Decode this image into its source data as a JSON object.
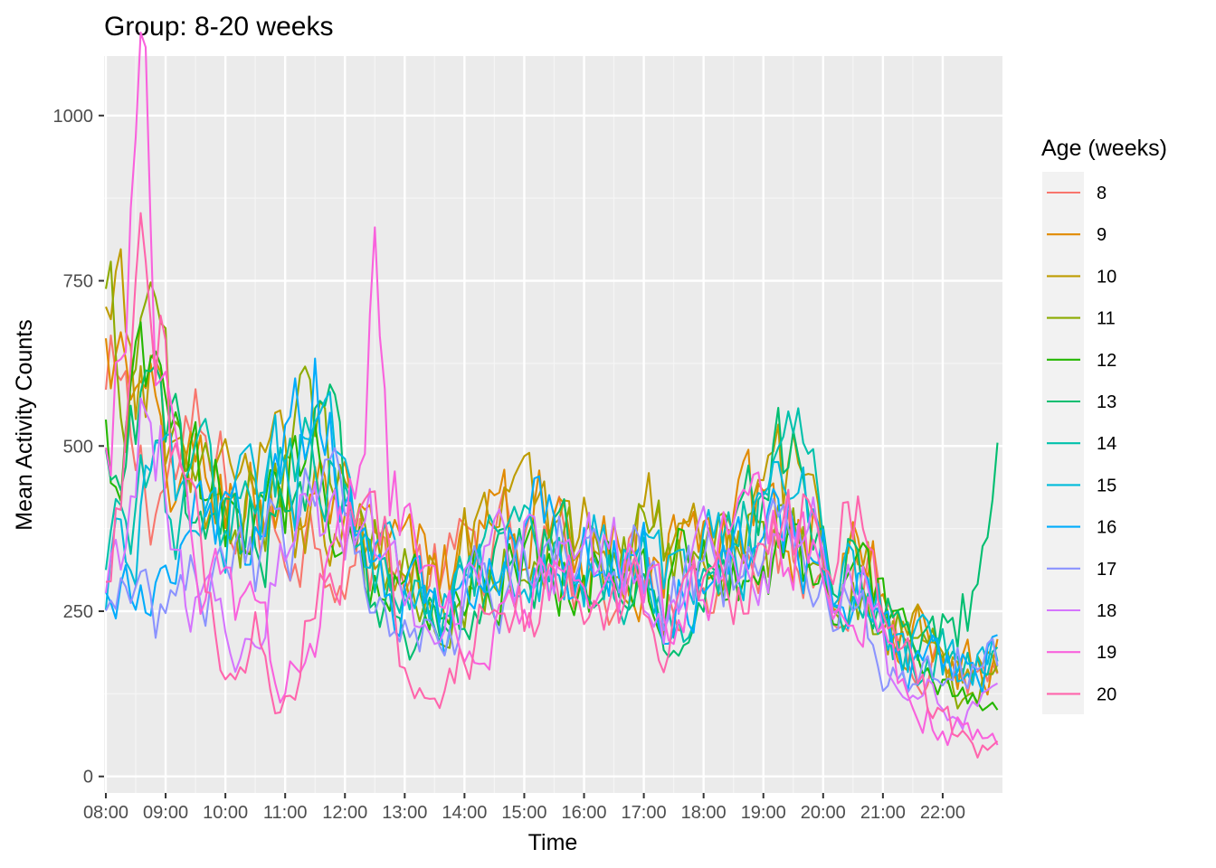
{
  "chart_data": {
    "type": "line",
    "title": "Group: 8-20 weeks",
    "xlabel": "Time",
    "ylabel": "Mean Activity Counts",
    "x_range_hours": [
      8.0,
      22.97
    ],
    "xlim_hours": [
      7.97,
      23.0
    ],
    "ylim": [
      -25,
      1090
    ],
    "x_tick_values_hours": [
      8,
      9,
      10,
      11,
      12,
      13,
      14,
      15,
      16,
      17,
      18,
      19,
      20,
      21,
      22
    ],
    "x_tick_labels": [
      "08:00",
      "09:00",
      "10:00",
      "11:00",
      "12:00",
      "13:00",
      "14:00",
      "15:00",
      "16:00",
      "17:00",
      "18:00",
      "19:00",
      "20:00",
      "21:00",
      "22:00"
    ],
    "y_ticks": [
      0,
      250,
      500,
      750,
      1000
    ],
    "y_tick_labels": [
      "0",
      "250",
      "500",
      "750",
      "1000"
    ],
    "grid": true,
    "legend_position": "right",
    "legend_title": "Age (weeks)",
    "sample_interval_minutes": 5,
    "series": [
      {
        "name": "8",
        "color": "#F8766D",
        "anchors": [
          [
            8.0,
            560
          ],
          [
            8.75,
            440
          ],
          [
            9.5,
            480
          ],
          [
            10.5,
            360
          ],
          [
            11.5,
            380
          ],
          [
            12.5,
            330
          ],
          [
            13.5,
            300
          ],
          [
            14.5,
            340
          ],
          [
            15.5,
            330
          ],
          [
            16.5,
            320
          ],
          [
            17.5,
            300
          ],
          [
            18.5,
            330
          ],
          [
            19.5,
            350
          ],
          [
            20.5,
            300
          ],
          [
            21.5,
            210
          ],
          [
            22.5,
            150
          ],
          [
            22.97,
            170
          ]
        ]
      },
      {
        "name": "9",
        "color": "#E18A00",
        "anchors": [
          [
            8.0,
            620
          ],
          [
            8.75,
            490
          ],
          [
            9.5,
            440
          ],
          [
            10.5,
            420
          ],
          [
            11.5,
            420
          ],
          [
            12.5,
            320
          ],
          [
            13.5,
            320
          ],
          [
            14.5,
            370
          ],
          [
            15.5,
            380
          ],
          [
            16.5,
            360
          ],
          [
            17.5,
            340
          ],
          [
            18.5,
            370
          ],
          [
            19.5,
            380
          ],
          [
            20.5,
            330
          ],
          [
            21.5,
            220
          ],
          [
            22.5,
            170
          ],
          [
            22.97,
            190
          ]
        ]
      },
      {
        "name": "10",
        "color": "#BE9C00",
        "anchors": [
          [
            8.0,
            650
          ],
          [
            8.75,
            570
          ],
          [
            9.5,
            460
          ],
          [
            10.5,
            430
          ],
          [
            11.5,
            420
          ],
          [
            12.5,
            340
          ],
          [
            13.5,
            330
          ],
          [
            14.5,
            380
          ],
          [
            15.5,
            400
          ],
          [
            16.5,
            360
          ],
          [
            17.5,
            400
          ],
          [
            18.5,
            380
          ],
          [
            19.5,
            420
          ],
          [
            20.5,
            320
          ],
          [
            21.5,
            230
          ],
          [
            22.5,
            160
          ],
          [
            22.97,
            150
          ]
        ]
      },
      {
        "name": "11",
        "color": "#8CAB00",
        "anchors": [
          [
            8.0,
            660
          ],
          [
            8.75,
            620
          ],
          [
            9.5,
            450
          ],
          [
            10.5,
            380
          ],
          [
            11.5,
            520
          ],
          [
            12.5,
            320
          ],
          [
            13.5,
            260
          ],
          [
            14.5,
            320
          ],
          [
            15.5,
            360
          ],
          [
            16.5,
            330
          ],
          [
            17.5,
            350
          ],
          [
            18.5,
            360
          ],
          [
            19.5,
            350
          ],
          [
            20.5,
            300
          ],
          [
            21.5,
            200
          ],
          [
            22.5,
            140
          ],
          [
            22.97,
            130
          ]
        ]
      },
      {
        "name": "12",
        "color": "#24B700",
        "anchors": [
          [
            8.0,
            470
          ],
          [
            8.75,
            560
          ],
          [
            9.5,
            430
          ],
          [
            10.5,
            360
          ],
          [
            11.5,
            520
          ],
          [
            12.5,
            310
          ],
          [
            13.5,
            270
          ],
          [
            14.5,
            330
          ],
          [
            15.5,
            320
          ],
          [
            16.5,
            320
          ],
          [
            17.5,
            300
          ],
          [
            18.5,
            330
          ],
          [
            19.5,
            320
          ],
          [
            20.5,
            290
          ],
          [
            21.5,
            180
          ],
          [
            22.5,
            120
          ],
          [
            22.97,
            100
          ]
        ]
      },
      {
        "name": "13",
        "color": "#00BE70",
        "anchors": [
          [
            8.0,
            420
          ],
          [
            8.75,
            520
          ],
          [
            9.5,
            420
          ],
          [
            10.5,
            380
          ],
          [
            11.5,
            500
          ],
          [
            12.5,
            300
          ],
          [
            13.5,
            230
          ],
          [
            14.5,
            300
          ],
          [
            15.5,
            320
          ],
          [
            16.5,
            290
          ],
          [
            17.5,
            230
          ],
          [
            18.5,
            360
          ],
          [
            19.5,
            520
          ],
          [
            20.5,
            320
          ],
          [
            21.5,
            200
          ],
          [
            22.5,
            260
          ],
          [
            22.97,
            420
          ]
        ]
      },
      {
        "name": "14",
        "color": "#00C1AB",
        "anchors": [
          [
            8.0,
            380
          ],
          [
            8.75,
            440
          ],
          [
            9.5,
            410
          ],
          [
            10.5,
            420
          ],
          [
            11.5,
            480
          ],
          [
            12.5,
            280
          ],
          [
            13.5,
            250
          ],
          [
            14.5,
            300
          ],
          [
            15.5,
            340
          ],
          [
            16.5,
            310
          ],
          [
            17.5,
            280
          ],
          [
            18.5,
            360
          ],
          [
            19.5,
            450
          ],
          [
            20.5,
            300
          ],
          [
            21.5,
            190
          ],
          [
            22.5,
            170
          ],
          [
            22.97,
            200
          ]
        ]
      },
      {
        "name": "15",
        "color": "#00BBDA",
        "anchors": [
          [
            8.0,
            300
          ],
          [
            8.75,
            420
          ],
          [
            9.5,
            410
          ],
          [
            10.5,
            380
          ],
          [
            11.5,
            510
          ],
          [
            12.5,
            300
          ],
          [
            13.5,
            240
          ],
          [
            14.5,
            300
          ],
          [
            15.5,
            330
          ],
          [
            16.5,
            320
          ],
          [
            17.5,
            300
          ],
          [
            18.5,
            340
          ],
          [
            19.5,
            430
          ],
          [
            20.5,
            330
          ],
          [
            21.5,
            190
          ],
          [
            22.5,
            150
          ],
          [
            22.97,
            220
          ]
        ]
      },
      {
        "name": "16",
        "color": "#00ACFC",
        "anchors": [
          [
            8.0,
            320
          ],
          [
            8.75,
            240
          ],
          [
            9.5,
            380
          ],
          [
            10.5,
            350
          ],
          [
            11.5,
            560
          ],
          [
            12.5,
            310
          ],
          [
            13.5,
            230
          ],
          [
            14.5,
            300
          ],
          [
            15.5,
            380
          ],
          [
            16.5,
            320
          ],
          [
            17.5,
            290
          ],
          [
            18.5,
            330
          ],
          [
            19.5,
            380
          ],
          [
            20.5,
            300
          ],
          [
            21.5,
            170
          ],
          [
            22.5,
            170
          ],
          [
            22.97,
            200
          ]
        ]
      },
      {
        "name": "17",
        "color": "#8B93FF",
        "anchors": [
          [
            8.0,
            280
          ],
          [
            8.75,
            240
          ],
          [
            9.5,
            300
          ],
          [
            10.5,
            300
          ],
          [
            11.5,
            430
          ],
          [
            12.5,
            300
          ],
          [
            13.5,
            230
          ],
          [
            14.5,
            290
          ],
          [
            15.5,
            350
          ],
          [
            16.5,
            340
          ],
          [
            17.5,
            270
          ],
          [
            18.5,
            310
          ],
          [
            19.5,
            360
          ],
          [
            20.5,
            260
          ],
          [
            21.5,
            130
          ],
          [
            22.5,
            170
          ],
          [
            22.97,
            190
          ]
        ]
      },
      {
        "name": "18",
        "color": "#D575FE",
        "anchors": [
          [
            8.0,
            300
          ],
          [
            8.75,
            560
          ],
          [
            9.5,
            260
          ],
          [
            10.5,
            230
          ],
          [
            11.5,
            420
          ],
          [
            12.5,
            360
          ],
          [
            13.5,
            280
          ],
          [
            14.5,
            310
          ],
          [
            15.5,
            380
          ],
          [
            16.5,
            330
          ],
          [
            17.5,
            260
          ],
          [
            18.5,
            330
          ],
          [
            19.5,
            380
          ],
          [
            20.5,
            290
          ],
          [
            21.5,
            130
          ],
          [
            22.5,
            80
          ],
          [
            22.97,
            120
          ]
        ]
      },
      {
        "name": "19",
        "color": "#F962DD",
        "anchors": [
          [
            8.0,
            520
          ],
          [
            8.55,
            980
          ],
          [
            9.0,
            520
          ],
          [
            9.5,
            300
          ],
          [
            10.5,
            230
          ],
          [
            11.0,
            150
          ],
          [
            11.5,
            260
          ],
          [
            12.2,
            450
          ],
          [
            12.5,
            760
          ],
          [
            12.8,
            420
          ],
          [
            13.5,
            250
          ],
          [
            14.5,
            250
          ],
          [
            15.5,
            300
          ],
          [
            16.5,
            300
          ],
          [
            17.5,
            260
          ],
          [
            18.5,
            340
          ],
          [
            19.5,
            360
          ],
          [
            20.5,
            300
          ],
          [
            21.5,
            100
          ],
          [
            22.5,
            60
          ],
          [
            22.97,
            60
          ]
        ]
      },
      {
        "name": "20",
        "color": "#FF65AC",
        "anchors": [
          [
            8.0,
            300
          ],
          [
            8.75,
            700
          ],
          [
            9.5,
            340
          ],
          [
            10.0,
            150
          ],
          [
            10.5,
            250
          ],
          [
            11.0,
            130
          ],
          [
            11.5,
            260
          ],
          [
            12.5,
            430
          ],
          [
            13.0,
            200
          ],
          [
            13.5,
            120
          ],
          [
            14.5,
            240
          ],
          [
            15.5,
            260
          ],
          [
            16.5,
            250
          ],
          [
            17.5,
            240
          ],
          [
            18.5,
            320
          ],
          [
            19.5,
            360
          ],
          [
            20.5,
            400
          ],
          [
            21.5,
            200
          ],
          [
            22.0,
            80
          ],
          [
            22.5,
            50
          ],
          [
            22.97,
            45
          ]
        ]
      }
    ]
  }
}
